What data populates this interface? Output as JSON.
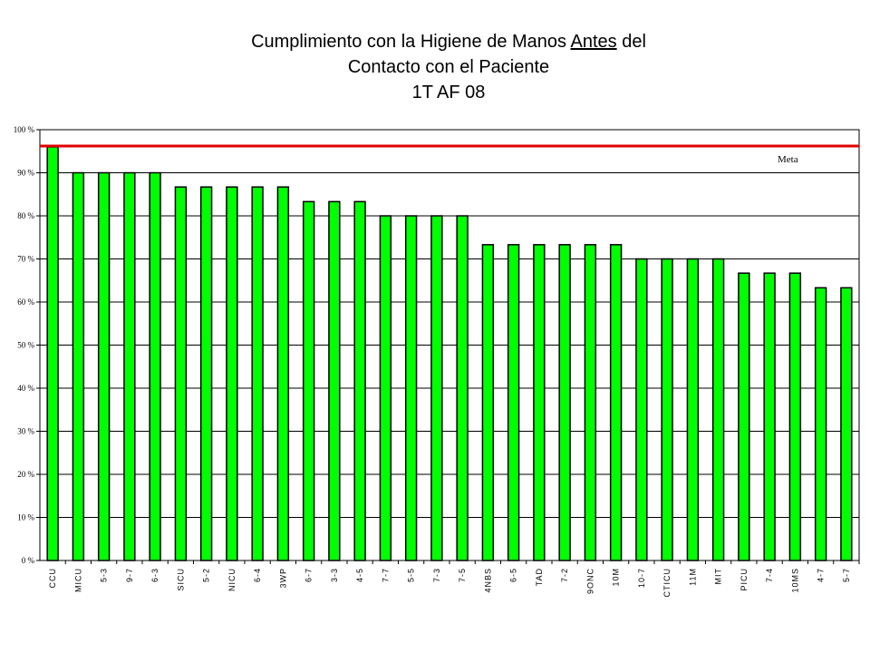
{
  "chart_data": {
    "type": "bar",
    "title": {
      "line1_before": "Cumplimiento con la Higiene de Manos ",
      "line1_underlined": "Antes",
      "line1_after": " del",
      "line2": "Contacto con el Paciente",
      "line3": "1T AF 08"
    },
    "categories": [
      "CCU",
      "MICU",
      "5-3",
      "9-7",
      "6-3",
      "SICU",
      "5-2",
      "NICU",
      "6-4",
      "3WP",
      "6-7",
      "3-3",
      "4-5",
      "7-7",
      "5-5",
      "7-3",
      "7-5",
      "4NBS",
      "6-5",
      "TAD",
      "7-2",
      "9ONC",
      "10M",
      "10-7",
      "CTICU",
      "11M",
      "MIT",
      "PICU",
      "7-4",
      "10MS",
      "4-7",
      "5-7"
    ],
    "values": [
      96,
      90,
      90,
      90,
      90,
      86.7,
      86.7,
      86.7,
      86.7,
      86.7,
      83.3,
      83.3,
      83.3,
      80,
      80,
      80,
      80,
      73.3,
      73.3,
      73.3,
      73.3,
      73.3,
      73.3,
      70,
      70,
      70,
      70,
      66.7,
      66.7,
      66.7,
      63.3,
      63.3
    ],
    "ylim": [
      0,
      100
    ],
    "yticks": [
      "0 %",
      "10 %",
      "20 %",
      "30 %",
      "40 %",
      "50 %",
      "60 %",
      "70 %",
      "80 %",
      "90 %",
      "100 %"
    ],
    "grid": true,
    "target_line": {
      "label": "Meta",
      "value": 96.2,
      "color": "#e00000"
    },
    "bar_color": "#00ff00",
    "bar_border": "#000000"
  }
}
